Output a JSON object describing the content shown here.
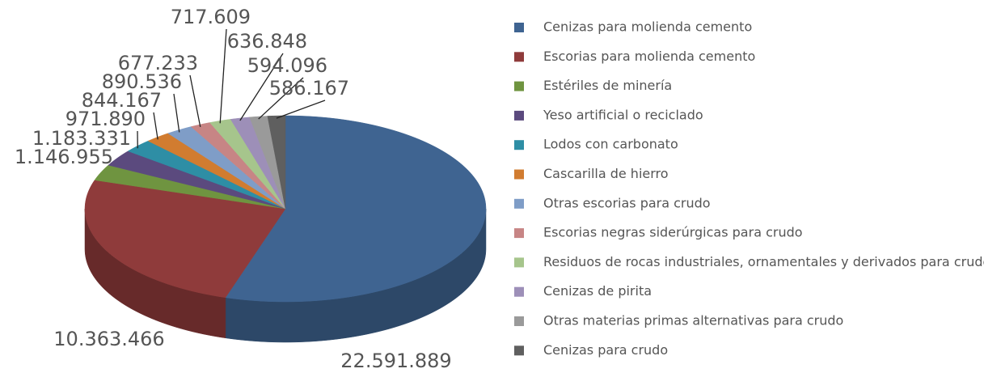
{
  "chart_data": {
    "type": "pie3d",
    "categories": [
      "Cenizas para molienda cemento",
      "Escorias para molienda cemento",
      "Estériles de minería",
      "Yeso artificial o reciclado",
      "Lodos con carbonato",
      "Cascarilla de hierro",
      "Otras escorias para crudo",
      "Escorias negras siderúrgicas para crudo",
      "Residuos de rocas industriales, ornamentales y derivados para crudo",
      "Cenizas de pirita",
      "Otras materias primas alternativas para crudo",
      "Cenizas para crudo"
    ],
    "values": [
      22591889,
      10363466,
      1146955,
      1183331,
      971890,
      844167,
      890536,
      677233,
      717609,
      636848,
      594096,
      586167
    ],
    "value_labels": [
      "22.591.889",
      "10.363.466",
      "1.146.955",
      "1.183.331",
      "971.890",
      "844.167",
      "890.536",
      "677.233",
      "717.609",
      "636.848",
      "594.096",
      "586.167"
    ],
    "colors": [
      "#3f6491",
      "#8f3b3b",
      "#6f9440",
      "#5b4a7e",
      "#2e8ea5",
      "#d17c30",
      "#7f9dc7",
      "#c78585",
      "#a6c58c",
      "#9d8fb8",
      "#9a9a9a",
      "#5f5f5f"
    ],
    "legend": "right"
  }
}
